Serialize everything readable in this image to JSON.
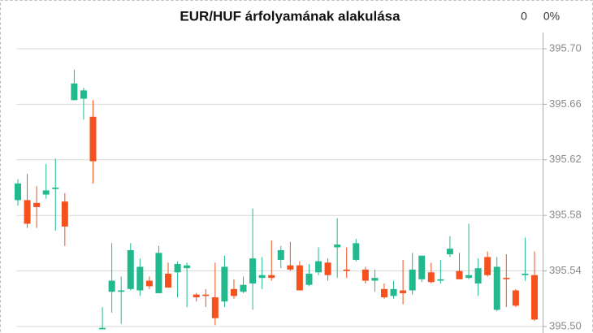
{
  "chart_data": {
    "type": "candlestick",
    "title": "EUR/HUF árfolyamának alakulása",
    "change": "0",
    "change_percent": "0%",
    "up_color": "#22b98f",
    "down_color": "#f4511e",
    "ylim": [
      395.495,
      395.72
    ],
    "yticks": [
      {
        "value": 395.5,
        "label": "395.50"
      },
      395.54,
      395.58,
      395.62,
      395.66,
      {
        "value": 395.7,
        "label": "395.70"
      }
    ],
    "grid": true,
    "open": [
      395.591,
      395.591,
      395.589,
      395.595,
      395.599,
      395.59,
      395.663,
      395.664,
      395.651,
      395.498,
      395.525,
      395.525,
      395.527,
      395.526,
      395.533,
      395.524,
      395.538,
      395.539,
      395.542,
      395.523,
      395.523,
      395.521,
      395.518,
      395.527,
      395.525,
      395.531,
      395.535,
      395.537,
      395.548,
      395.544,
      395.544,
      395.53,
      395.539,
      395.546,
      395.557,
      395.541,
      395.548,
      395.541,
      395.533,
      395.527,
      395.522,
      395.526,
      395.526,
      395.534,
      395.539,
      395.533,
      395.552,
      395.54,
      395.535,
      395.531,
      395.55,
      395.512,
      395.535,
      395.526,
      395.537,
      395.537
    ],
    "high": [
      395.606,
      395.61,
      395.601,
      395.617,
      395.621,
      395.596,
      395.685,
      395.672,
      395.663,
      395.514,
      395.56,
      395.536,
      395.56,
      395.549,
      395.536,
      395.558,
      395.546,
      395.547,
      395.546,
      395.524,
      395.527,
      395.546,
      395.551,
      395.534,
      395.536,
      395.585,
      395.55,
      395.562,
      395.558,
      395.561,
      395.547,
      395.545,
      395.557,
      395.549,
      395.578,
      395.557,
      395.563,
      395.543,
      395.541,
      395.531,
      395.533,
      395.548,
      395.553,
      395.551,
      395.546,
      395.548,
      395.565,
      395.553,
      395.574,
      395.549,
      395.554,
      395.55,
      395.552,
      395.527,
      395.564,
      395.554
    ],
    "low": [
      395.587,
      395.571,
      395.571,
      395.592,
      395.569,
      395.558,
      395.663,
      395.649,
      395.603,
      395.498,
      395.51,
      395.502,
      395.526,
      395.522,
      395.527,
      395.524,
      395.528,
      395.521,
      395.514,
      395.518,
      395.514,
      395.501,
      395.514,
      395.52,
      395.524,
      395.512,
      395.527,
      395.533,
      395.542,
      395.54,
      395.526,
      395.529,
      395.537,
      395.533,
      395.535,
      395.535,
      395.547,
      395.531,
      395.525,
      395.52,
      395.52,
      395.516,
      395.523,
      395.532,
      395.531,
      395.531,
      395.55,
      395.534,
      395.534,
      395.522,
      395.536,
      395.511,
      395.514,
      395.514,
      395.533,
      395.504
    ],
    "close": [
      395.603,
      395.574,
      395.586,
      395.598,
      395.6,
      395.572,
      395.675,
      395.67,
      395.619,
      395.499,
      395.533,
      395.526,
      395.555,
      395.543,
      395.529,
      395.553,
      395.528,
      395.545,
      395.544,
      395.521,
      395.522,
      395.506,
      395.543,
      395.522,
      395.53,
      395.549,
      395.537,
      395.535,
      395.555,
      395.541,
      395.526,
      395.538,
      395.547,
      395.537,
      395.559,
      395.54,
      395.56,
      395.533,
      395.535,
      395.521,
      395.527,
      395.524,
      395.541,
      395.551,
      395.532,
      395.534,
      395.556,
      395.534,
      395.537,
      395.542,
      395.537,
      395.543,
      395.534,
      395.515,
      395.538,
      395.505
    ]
  }
}
